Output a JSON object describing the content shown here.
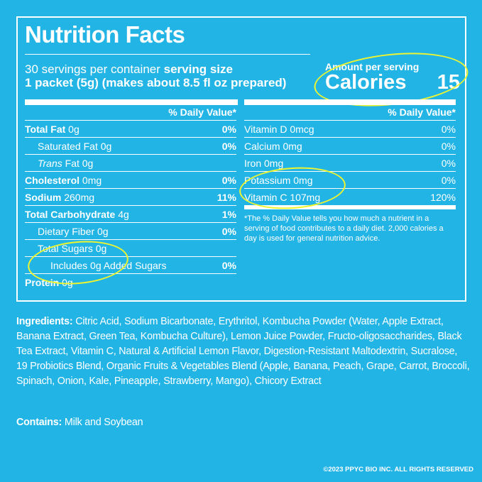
{
  "title": "Nutrition Facts",
  "servings": {
    "per_container": "30 servings per container",
    "size_label": "serving size",
    "size_value": "1 packet (5g) (makes about 8.5 fl oz prepared)"
  },
  "calories": {
    "amount_label": "Amount per serving",
    "label": "Calories",
    "value": "15"
  },
  "dv_header": "% Daily Value*",
  "left_rows": [
    {
      "name_bold": "Total Fat",
      "amount": " 0g",
      "pct": "0%"
    },
    {
      "name": "Saturated Fat 0g",
      "pct": "0%"
    },
    {
      "name_italic": "Trans",
      "amount": " Fat 0g",
      "pct": ""
    },
    {
      "name_bold": "Cholesterol",
      "amount": " 0mg",
      "pct": "0%"
    },
    {
      "name_bold": "Sodium",
      "amount": " 260mg",
      "pct": "11%"
    },
    {
      "name_bold": "Total Carbohydrate",
      "amount": " 4g",
      "pct": "1%"
    },
    {
      "name": "Dietary Fiber 0g",
      "pct": "0%"
    },
    {
      "name": "Total Sugars 0g",
      "pct": ""
    },
    {
      "name": "Includes 0g Added Sugars",
      "pct": "0%"
    },
    {
      "name_bold": "Protein",
      "amount": " 0g",
      "pct": ""
    }
  ],
  "right_rows": [
    {
      "name": "Vitamin D 0mcg",
      "pct": "0%"
    },
    {
      "name": "Calcium 0mg",
      "pct": "0%"
    },
    {
      "name": "Iron 0mg",
      "pct": "0%"
    },
    {
      "name": "Potassium 0mg",
      "pct": "0%"
    },
    {
      "name": "Vitamin C 107mg",
      "pct": "120%"
    }
  ],
  "footnote": "*The % Daily Value tells you how much a nutrient in a serving of food contributes to a daily diet. 2,000 calories a day is used for general nutrition advice.",
  "ingredients": {
    "label": "Ingredients:",
    "text": " Citric Acid, Sodium Bicarbonate, Erythritol, Kombucha Powder (Water, Apple Extract, Banana Extract, Green Tea, Kombucha Culture), Lemon Juice Powder, Fructo-oligosaccharides, Black Tea Extract, Vitamin C, Natural & Artificial Lemon Flavor, Digestion-Resistant Maltodextrin, Sucralose, 19 Probiotics Blend, Organic Fruits & Vegetables Blend (Apple, Banana, Peach, Grape, Carrot, Broccoli, Spinach, Onion, Kale, Pineapple, Strawberry, Mango), Chicory Extract"
  },
  "contains": {
    "label": "Contains:",
    "text": " Milk and Soybean"
  },
  "copyright": "©2023 PPYC BIO INC. ALL RIGHTS RESERVED",
  "colors": {
    "background": "#23b4e6",
    "text": "#ffffff",
    "highlight": "#eef530"
  }
}
